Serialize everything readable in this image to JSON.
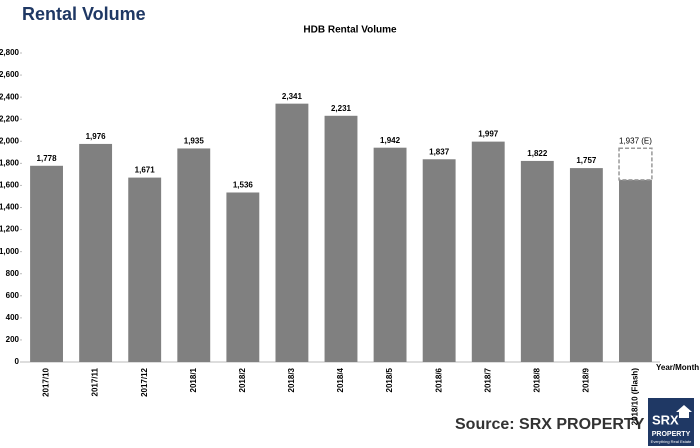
{
  "page_title": "Rental Volume",
  "source": "Source:  SRX PROPERTY",
  "logo": {
    "name": "SRX",
    "sub": "PROPERTY",
    "tagline": "Everything Real Estate"
  },
  "chart_data": {
    "type": "bar",
    "title": "HDB Rental Volume",
    "x_label": "Year/Month",
    "categories": [
      "2017/10",
      "2017/11",
      "2017/12",
      "2018/1",
      "2018/2",
      "2018/3",
      "2018/4",
      "2018/5",
      "2018/6",
      "2018/7",
      "2018/8",
      "2018/9",
      "2018/10 (Flash)"
    ],
    "values": [
      1778,
      1976,
      1671,
      1935,
      1536,
      2341,
      2231,
      1942,
      1837,
      1997,
      1822,
      1757,
      1650
    ],
    "value_labels": [
      "1,778",
      "1,976",
      "1,671",
      "1,935",
      "1,536",
      "2,341",
      "2,231",
      "1,942",
      "1,837",
      "1,997",
      "1,822",
      "1,757",
      null
    ],
    "estimate": {
      "value": 1937,
      "label": "1,937 (E)"
    },
    "color": "#808080",
    "ylim": [
      0,
      2800
    ],
    "yticks": [
      0,
      {
        "value": 200,
        "label": "200"
      },
      {
        "value": 400,
        "label": "400"
      },
      {
        "value": 600,
        "label": "600"
      },
      {
        "value": 800,
        "label": "800"
      },
      {
        "value": 1000,
        "label": "1,000"
      },
      {
        "value": 1200,
        "label": "1,200"
      },
      {
        "value": 1400,
        "label": "1,400"
      },
      {
        "value": 1600,
        "label": "1,600"
      },
      {
        "value": 1800,
        "label": "1,800"
      },
      {
        "value": 2000,
        "label": "2,000"
      },
      {
        "value": 2200,
        "label": "2,200"
      },
      {
        "value": 2400,
        "label": "2,400"
      },
      {
        "value": 2600,
        "label": "2,600"
      },
      {
        "value": 2800,
        "label": "2,800"
      }
    ],
    "grid": false
  }
}
